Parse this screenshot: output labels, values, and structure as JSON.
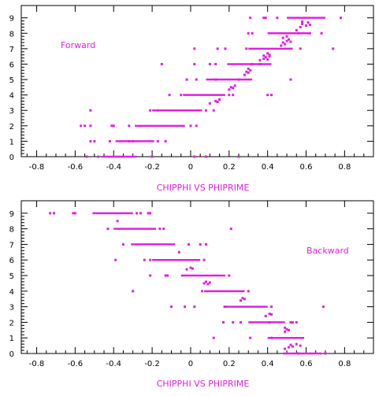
{
  "chart_data": [
    {
      "type": "scatter",
      "title": "",
      "xlabel": "CHIPPHI VS PHIPRIME",
      "ylabel": "",
      "annotation": "Forward",
      "xlim": [
        -0.88,
        0.95
      ],
      "ylim": [
        0,
        9.8
      ],
      "xticks": [
        -0.8,
        -0.6,
        -0.4,
        -0.2,
        0,
        0.2,
        0.4,
        0.6,
        0.8
      ],
      "xtick_labels": [
        "-0.8",
        "-0.6",
        "-0.4",
        "-0.2",
        "0",
        "0.2",
        "0.4",
        "0.6",
        "0.8"
      ],
      "yticks": [
        0,
        1,
        2,
        3,
        4,
        5,
        6,
        7,
        8,
        9
      ],
      "ytick_labels": [
        "0",
        "1",
        "2",
        "3",
        "4",
        "5",
        "6",
        "7",
        "8",
        "9"
      ],
      "color": "#e020e0",
      "bands": [
        {
          "y": 0,
          "x_start": -0.46,
          "x_end": -0.28
        },
        {
          "y": 1,
          "x_start": -0.39,
          "x_end": -0.19
        },
        {
          "y": 2,
          "x_start": -0.29,
          "x_end": -0.03
        },
        {
          "y": 3,
          "x_start": -0.2,
          "x_end": 0.06
        },
        {
          "y": 4,
          "x_start": -0.04,
          "x_end": 0.18
        },
        {
          "y": 5,
          "x_start": 0.08,
          "x_end": 0.32
        },
        {
          "y": 6,
          "x_start": 0.19,
          "x_end": 0.42
        },
        {
          "y": 7,
          "x_start": 0.3,
          "x_end": 0.53
        },
        {
          "y": 8,
          "x_start": 0.4,
          "x_end": 0.62
        },
        {
          "y": 9,
          "x_start": 0.5,
          "x_end": 0.7
        }
      ],
      "points": [
        [
          -0.54,
          0
        ],
        [
          -0.48,
          0
        ],
        [
          -0.2,
          0
        ],
        [
          0.02,
          0
        ],
        [
          0.08,
          0
        ],
        [
          0.25,
          0
        ],
        [
          -0.52,
          1
        ],
        [
          -0.5,
          1
        ],
        [
          -0.42,
          1
        ],
        [
          -0.32,
          1
        ],
        [
          -0.3,
          1
        ],
        [
          -0.17,
          1
        ],
        [
          -0.13,
          1
        ],
        [
          -0.57,
          2
        ],
        [
          -0.55,
          2
        ],
        [
          -0.52,
          2
        ],
        [
          -0.41,
          2
        ],
        [
          -0.4,
          2
        ],
        [
          -0.32,
          2
        ],
        [
          0.0,
          2
        ],
        [
          0.03,
          2
        ],
        [
          -0.52,
          3
        ],
        [
          -0.21,
          3
        ],
        [
          -0.17,
          3
        ],
        [
          0.08,
          3
        ],
        [
          0.12,
          3
        ],
        [
          0.1,
          3.45
        ],
        [
          0.13,
          3.6
        ],
        [
          0.14,
          3.55
        ],
        [
          0.15,
          3.7
        ],
        [
          -0.11,
          4
        ],
        [
          -0.05,
          4
        ],
        [
          0.2,
          4
        ],
        [
          0.22,
          4
        ],
        [
          0.4,
          4
        ],
        [
          0.42,
          4
        ],
        [
          0.2,
          4.35
        ],
        [
          0.21,
          4.5
        ],
        [
          0.22,
          4.45
        ],
        [
          0.23,
          4.6
        ],
        [
          -0.02,
          5
        ],
        [
          0.03,
          5
        ],
        [
          0.13,
          5
        ],
        [
          0.25,
          5
        ],
        [
          0.52,
          5
        ],
        [
          0.28,
          5.3
        ],
        [
          0.29,
          5.5
        ],
        [
          0.3,
          5.45
        ],
        [
          0.31,
          5.6
        ],
        [
          0.3,
          5.7
        ],
        [
          -0.15,
          6
        ],
        [
          0.02,
          6
        ],
        [
          0.1,
          6
        ],
        [
          0.13,
          6
        ],
        [
          0.32,
          6
        ],
        [
          0.36,
          6
        ],
        [
          0.36,
          6.25
        ],
        [
          0.38,
          6.35
        ],
        [
          0.39,
          6.45
        ],
        [
          0.4,
          6.3
        ],
        [
          0.41,
          6.5
        ],
        [
          0.38,
          6.55
        ],
        [
          0.4,
          6.7
        ],
        [
          0.41,
          6.6
        ],
        [
          0.02,
          7
        ],
        [
          0.14,
          7
        ],
        [
          0.18,
          7
        ],
        [
          0.29,
          7
        ],
        [
          0.57,
          7
        ],
        [
          0.74,
          7
        ],
        [
          0.47,
          7.2
        ],
        [
          0.48,
          7.4
        ],
        [
          0.49,
          7.3
        ],
        [
          0.5,
          7.5
        ],
        [
          0.51,
          7.6
        ],
        [
          0.48,
          7.7
        ],
        [
          0.5,
          7.8
        ],
        [
          0.52,
          7.45
        ],
        [
          0.3,
          8
        ],
        [
          0.32,
          8
        ],
        [
          0.56,
          8
        ],
        [
          0.62,
          8
        ],
        [
          0.68,
          8
        ],
        [
          0.55,
          8.2
        ],
        [
          0.57,
          8.4
        ],
        [
          0.58,
          8.6
        ],
        [
          0.6,
          8.5
        ],
        [
          0.61,
          8.7
        ],
        [
          0.58,
          8.75
        ],
        [
          0.62,
          8.55
        ],
        [
          0.31,
          9
        ],
        [
          0.38,
          9
        ],
        [
          0.39,
          9
        ],
        [
          0.45,
          9
        ],
        [
          0.78,
          9
        ]
      ]
    },
    {
      "type": "scatter",
      "title": "",
      "xlabel": "CHIPPHI VS PHIPRIME",
      "ylabel": "",
      "annotation": "Backward",
      "xlim": [
        -0.88,
        0.95
      ],
      "ylim": [
        0,
        9.8
      ],
      "xticks": [
        -0.8,
        -0.6,
        -0.4,
        -0.2,
        0,
        0.2,
        0.4,
        0.6,
        0.8
      ],
      "xtick_labels": [
        "-0.8",
        "-0.6",
        "-0.4",
        "-0.2",
        "0",
        "0.2",
        "0.4",
        "0.6",
        "0.8"
      ],
      "yticks": [
        0,
        1,
        2,
        3,
        4,
        5,
        6,
        7,
        8,
        9
      ],
      "ytick_labels": [
        "0",
        "1",
        "2",
        "3",
        "4",
        "5",
        "6",
        "7",
        "8",
        "9"
      ],
      "color": "#e020e0",
      "bands": [
        {
          "y": 9,
          "x_start": -0.51,
          "x_end": -0.3
        },
        {
          "y": 8,
          "x_start": -0.4,
          "x_end": -0.18
        },
        {
          "y": 7,
          "x_start": -0.31,
          "x_end": -0.08
        },
        {
          "y": 6,
          "x_start": -0.2,
          "x_end": 0.05
        },
        {
          "y": 5,
          "x_start": -0.05,
          "x_end": 0.18
        },
        {
          "y": 4,
          "x_start": 0.07,
          "x_end": 0.28
        },
        {
          "y": 3,
          "x_start": 0.17,
          "x_end": 0.4
        },
        {
          "y": 2,
          "x_start": 0.3,
          "x_end": 0.49
        },
        {
          "y": 1,
          "x_start": 0.4,
          "x_end": 0.59
        },
        {
          "y": 0,
          "x_start": 0.48,
          "x_end": 0.68
        }
      ],
      "points": [
        [
          -0.73,
          9
        ],
        [
          -0.71,
          9
        ],
        [
          -0.61,
          9
        ],
        [
          -0.6,
          9
        ],
        [
          -0.28,
          9
        ],
        [
          -0.26,
          9
        ],
        [
          -0.22,
          9
        ],
        [
          -0.21,
          9
        ],
        [
          -0.43,
          8
        ],
        [
          -0.16,
          8
        ],
        [
          -0.14,
          8
        ],
        [
          0.21,
          8
        ],
        [
          -0.38,
          8.5
        ],
        [
          -0.35,
          7
        ],
        [
          -0.01,
          7
        ],
        [
          0.05,
          7
        ],
        [
          0.08,
          7
        ],
        [
          -0.06,
          6.5
        ],
        [
          -0.39,
          6
        ],
        [
          -0.24,
          6
        ],
        [
          -0.21,
          6
        ],
        [
          0.07,
          6
        ],
        [
          -0.21,
          5
        ],
        [
          -0.13,
          5
        ],
        [
          -0.12,
          5
        ],
        [
          0.2,
          5
        ],
        [
          -0.02,
          5.4
        ],
        [
          0.0,
          5.5
        ],
        [
          0.01,
          5.45
        ],
        [
          0.07,
          4.5
        ],
        [
          0.08,
          4.6
        ],
        [
          0.09,
          4.45
        ],
        [
          0.1,
          4.55
        ],
        [
          0.06,
          4
        ],
        [
          0.3,
          4
        ],
        [
          -0.3,
          4
        ],
        [
          -0.1,
          3
        ],
        [
          -0.03,
          3
        ],
        [
          0.02,
          3
        ],
        [
          0.18,
          3
        ],
        [
          0.42,
          3
        ],
        [
          0.69,
          3
        ],
        [
          0.26,
          3.4
        ],
        [
          0.27,
          3.55
        ],
        [
          0.28,
          3.5
        ],
        [
          0.17,
          2
        ],
        [
          0.22,
          2
        ],
        [
          0.26,
          2
        ],
        [
          0.41,
          2
        ],
        [
          0.52,
          2
        ],
        [
          0.53,
          2
        ],
        [
          0.55,
          2
        ],
        [
          0.39,
          2.4
        ],
        [
          0.41,
          2.55
        ],
        [
          0.42,
          2.5
        ],
        [
          0.12,
          1
        ],
        [
          0.31,
          1
        ],
        [
          0.42,
          1
        ],
        [
          0.49,
          1.4
        ],
        [
          0.5,
          1.55
        ],
        [
          0.51,
          1.5
        ],
        [
          0.49,
          1.65
        ],
        [
          0.49,
          0.3
        ],
        [
          0.51,
          0.4
        ],
        [
          0.52,
          0.55
        ],
        [
          0.53,
          0.45
        ],
        [
          0.55,
          0.6
        ],
        [
          0.57,
          0.5
        ],
        [
          0.56,
          0
        ],
        [
          0.7,
          0
        ]
      ]
    }
  ]
}
